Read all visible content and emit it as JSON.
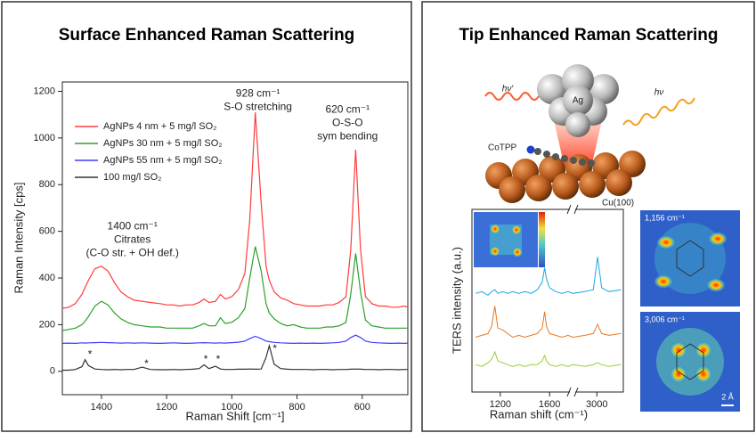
{
  "left_panel": {
    "heading": "Surface Enhanced Raman Scattering"
  },
  "right_panel": {
    "heading": "Tip Enhanced Raman Scattering",
    "illustration": {
      "tip": "Ag",
      "scattered_light": "hν′",
      "incident_light": "hν",
      "molecule": "CoTPP",
      "substrate": "Cu(100)"
    },
    "maps": [
      {
        "label": "1,156 cm⁻¹"
      },
      {
        "label": "3,006 cm⁻¹",
        "scale_bar": "2 Å"
      }
    ]
  },
  "chart_data": [
    {
      "type": "line",
      "x_axis_label": "Raman Shift [cm⁻¹]",
      "y_axis_label": "Raman Intensity [cps]",
      "xlim": [
        1520,
        460
      ],
      "xticks": [
        1400,
        1200,
        1000,
        800,
        600
      ],
      "ylim": [
        -100,
        1240
      ],
      "yticks": [
        0,
        200,
        400,
        600,
        800,
        1000,
        1200
      ],
      "legend": "upper left",
      "x": [
        1520,
        1500,
        1480,
        1460,
        1450,
        1440,
        1420,
        1400,
        1380,
        1360,
        1340,
        1320,
        1300,
        1275,
        1250,
        1220,
        1200,
        1180,
        1160,
        1140,
        1120,
        1100,
        1085,
        1070,
        1050,
        1035,
        1020,
        1000,
        980,
        960,
        945,
        928,
        910,
        895,
        885,
        870,
        850,
        830,
        810,
        790,
        770,
        750,
        730,
        710,
        690,
        670,
        650,
        635,
        620,
        605,
        590,
        570,
        550,
        530,
        510,
        490,
        470,
        460
      ],
      "series": [
        {
          "name": "AgNPs 4 nm + 5 mg/l SO₂",
          "color": "#ff3b3b",
          "values": [
            270,
            275,
            290,
            330,
            360,
            390,
            440,
            450,
            430,
            380,
            340,
            320,
            305,
            300,
            295,
            290,
            285,
            285,
            280,
            285,
            285,
            295,
            310,
            295,
            300,
            330,
            310,
            320,
            350,
            420,
            650,
            1110,
            720,
            450,
            390,
            340,
            315,
            305,
            290,
            285,
            280,
            280,
            280,
            285,
            285,
            295,
            320,
            520,
            950,
            520,
            320,
            290,
            280,
            280,
            275,
            275,
            280,
            275
          ]
        },
        {
          "name": "AgNPs 30 nm + 5 mg/l SO₂",
          "color": "#2ca02c",
          "values": [
            175,
            180,
            185,
            200,
            215,
            235,
            280,
            300,
            285,
            250,
            225,
            210,
            200,
            195,
            190,
            190,
            185,
            185,
            185,
            185,
            185,
            195,
            205,
            195,
            195,
            230,
            205,
            210,
            230,
            270,
            400,
            535,
            430,
            290,
            250,
            225,
            205,
            195,
            200,
            190,
            185,
            185,
            185,
            190,
            190,
            195,
            210,
            330,
            505,
            340,
            220,
            195,
            190,
            185,
            185,
            185,
            185,
            185
          ]
        },
        {
          "name": "AgNPs 55 nm + 5 mg/l SO₂",
          "color": "#3b3bff",
          "values": [
            120,
            121,
            120,
            122,
            121,
            122,
            123,
            124,
            123,
            122,
            121,
            122,
            121,
            122,
            121,
            120,
            121,
            122,
            121,
            120,
            121,
            122,
            123,
            122,
            121,
            122,
            121,
            123,
            125,
            130,
            140,
            150,
            140,
            130,
            127,
            124,
            122,
            121,
            120,
            121,
            120,
            121,
            120,
            121,
            122,
            124,
            130,
            145,
            155,
            145,
            130,
            124,
            122,
            121,
            120,
            121,
            120,
            121
          ]
        },
        {
          "name": "100 mg/l SO₂",
          "color": "#333333",
          "values": [
            5,
            5,
            8,
            20,
            50,
            25,
            10,
            8,
            7,
            8,
            7,
            8,
            8,
            18,
            8,
            7,
            7,
            8,
            7,
            8,
            9,
            12,
            28,
            12,
            22,
            10,
            8,
            8,
            9,
            9,
            10,
            9,
            10,
            60,
            110,
            30,
            12,
            9,
            8,
            8,
            8,
            7,
            8,
            8,
            7,
            8,
            8,
            9,
            10,
            9,
            8,
            8,
            7,
            8,
            8,
            7,
            8,
            8
          ]
        }
      ],
      "annotations": [
        {
          "lines": [
            "928 cm⁻¹",
            "S-O stretching"
          ],
          "x": 920,
          "y": 1190
        },
        {
          "lines": [
            "620 cm⁻¹",
            "O-S-O",
            "sym bending"
          ],
          "x": 645,
          "y": 1120
        },
        {
          "lines": [
            "1400 cm⁻¹",
            "Citrates",
            "(C-O str. + OH def.)"
          ],
          "x": 1305,
          "y": 620
        },
        {
          "lines": [
            "*"
          ],
          "x": 1435,
          "y": 70
        },
        {
          "lines": [
            "*"
          ],
          "x": 1262,
          "y": 30
        },
        {
          "lines": [
            "*"
          ],
          "x": 1080,
          "y": 50
        },
        {
          "lines": [
            "*"
          ],
          "x": 1042,
          "y": 50
        },
        {
          "lines": [
            "*"
          ],
          "x": 868,
          "y": 95
        }
      ]
    },
    {
      "type": "line",
      "x_axis_label": "Raman shift (cm⁻¹)",
      "y_axis_label": "TERS intensity (a.u.)",
      "xlim": [
        970,
        3220
      ],
      "x_break": [
        1765,
        2820
      ],
      "xticks": [
        1200,
        1600,
        3000
      ],
      "ylim": [
        0,
        10
      ],
      "x": [
        1000,
        1050,
        1100,
        1130,
        1156,
        1180,
        1220,
        1260,
        1300,
        1350,
        1400,
        1450,
        1500,
        1540,
        1560,
        1575,
        1600,
        1650,
        1700,
        1750,
        2800,
        2900,
        2970,
        3006,
        3040,
        3100,
        3200
      ],
      "series": [
        {
          "color": "#1ea6e0",
          "values": [
            5.4,
            5.5,
            5.3,
            5.5,
            5.6,
            5.4,
            5.5,
            5.4,
            5.5,
            5.4,
            5.5,
            5.4,
            5.6,
            6.0,
            6.8,
            6.2,
            5.7,
            5.5,
            5.4,
            5.5,
            5.4,
            5.5,
            5.6,
            7.4,
            5.7,
            5.5,
            5.6
          ]
        },
        {
          "color": "#e87722",
          "values": [
            3.0,
            3.1,
            3.2,
            3.6,
            4.7,
            3.5,
            3.4,
            3.2,
            3.0,
            3.1,
            3.0,
            3.1,
            3.2,
            3.5,
            4.4,
            3.6,
            3.2,
            3.1,
            3.0,
            3.1,
            3.0,
            3.1,
            3.2,
            3.7,
            3.2,
            3.1,
            3.2
          ]
        },
        {
          "color": "#9acd32",
          "values": [
            1.5,
            1.4,
            1.6,
            1.8,
            2.2,
            1.7,
            1.6,
            1.5,
            1.4,
            1.5,
            1.4,
            1.5,
            1.5,
            1.7,
            2.0,
            1.7,
            1.5,
            1.4,
            1.5,
            1.4,
            1.5,
            1.4,
            1.5,
            1.6,
            1.5,
            1.4,
            1.5
          ]
        }
      ]
    }
  ]
}
